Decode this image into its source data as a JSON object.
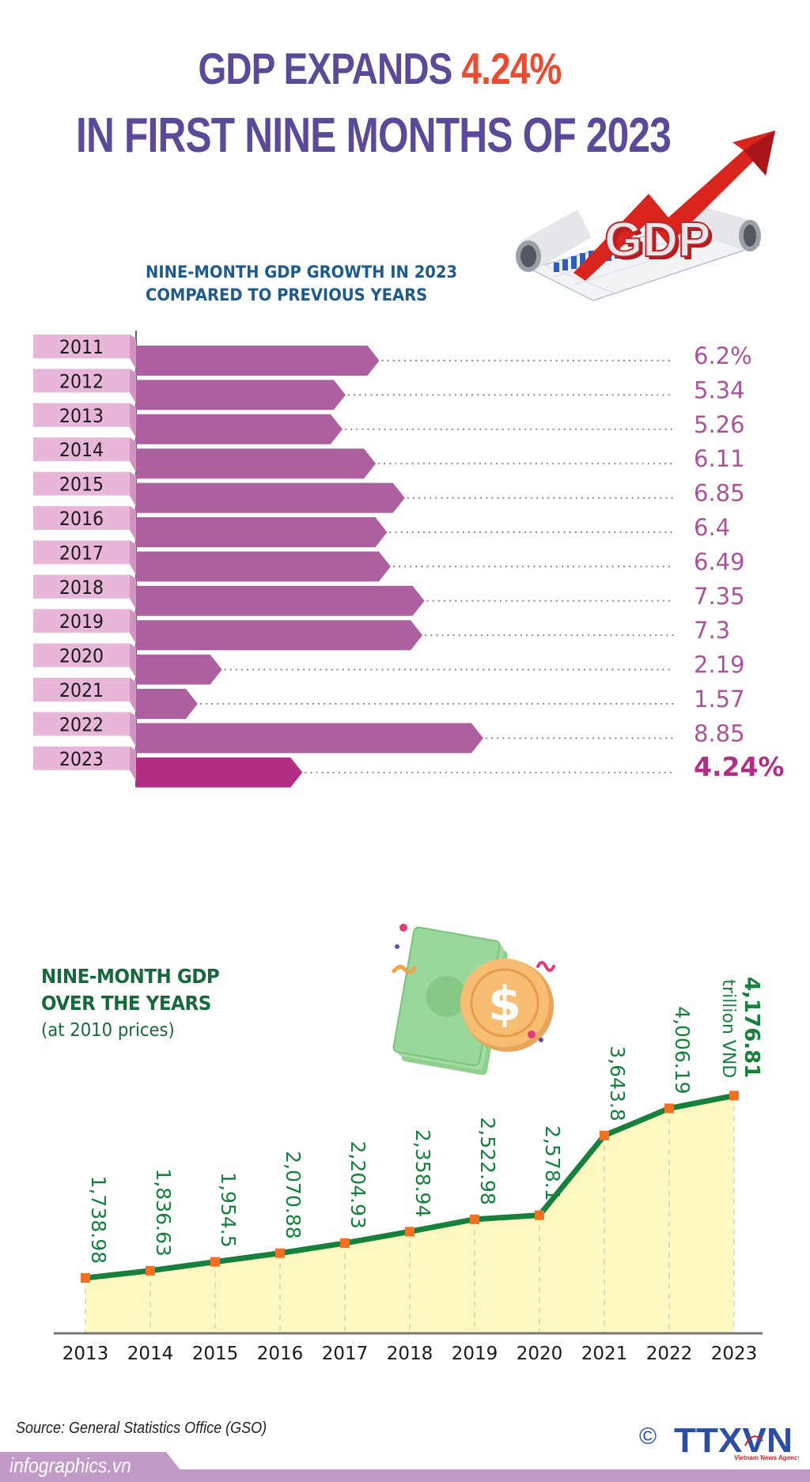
{
  "header": {
    "title_part1": "GDP EXPANDS ",
    "title_highlight": "4.24%",
    "title_line2": "IN FIRST NINE MONTHS OF 2023",
    "illustration_icon": "gdp-rising-arrow-icon",
    "illustration_text": "GDP"
  },
  "colors": {
    "title": "#5b4a98",
    "accent": "#ea4b33",
    "bar": "#ac609f",
    "bar_highlight": "#b22e85",
    "label_box": "#e8b6d8",
    "label_fold": "#d193bf",
    "value_text": "#a9549a",
    "line": "#17803d",
    "marker": "#f36f21",
    "area": "#fff8c0",
    "line_text": "#17803d"
  },
  "chart_data": [
    {
      "type": "bar",
      "orientation": "horizontal",
      "title": "NINE-MONTH GDP GROWTH IN 2023",
      "subtitle": "COMPARED TO PREVIOUS YEARS",
      "categories": [
        "2011",
        "2012",
        "2013",
        "2014",
        "2015",
        "2016",
        "2017",
        "2018",
        "2019",
        "2020",
        "2021",
        "2022",
        "2023"
      ],
      "values": [
        6.2,
        5.34,
        5.26,
        6.11,
        6.85,
        6.4,
        6.49,
        7.35,
        7.3,
        2.19,
        1.57,
        8.85,
        4.24
      ],
      "labels": [
        "6.2%",
        "5.34",
        "5.26",
        "6.11",
        "6.85",
        "6.4",
        "6.49",
        "7.35",
        "7.3",
        "2.19",
        "1.57",
        "8.85",
        "4.24%"
      ],
      "highlight": "2023",
      "unit": "%",
      "xlabel": "",
      "ylabel": ""
    },
    {
      "type": "area",
      "title": "NINE-MONTH GDP",
      "title_line2": "OVER THE YEARS",
      "subtitle": "(at 2010 prices)",
      "x": [
        "2013",
        "2014",
        "2015",
        "2016",
        "2017",
        "2018",
        "2019",
        "2020",
        "2021",
        "2022",
        "2023"
      ],
      "values": [
        1738.98,
        1836.63,
        1954.5,
        2070.88,
        2204.93,
        2358.94,
        2522.98,
        2578.1,
        3643.8,
        4006.19,
        4176.81
      ],
      "labels": [
        "1,738.98",
        "1,836.63",
        "1,954.5",
        "2,070.88",
        "2,204.93",
        "2,358.94",
        "2,522.98",
        "2,578.1",
        "3,643.8",
        "4,006.19",
        "4,176.81"
      ],
      "highlight": "2023",
      "unit_label": "trillion VND",
      "grid": "vertical-dashed",
      "xlabel": "",
      "ylabel": ""
    }
  ],
  "money_illustration": {
    "icon": "money-coin-icon",
    "symbol": "$"
  },
  "footer": {
    "source": "Source: General Statistics Office (GSO)",
    "site": "infographics.vn",
    "copyright_symbol": "©",
    "logo_text": "TTXVN",
    "logo_subtext": "Vietnam News Agency"
  }
}
